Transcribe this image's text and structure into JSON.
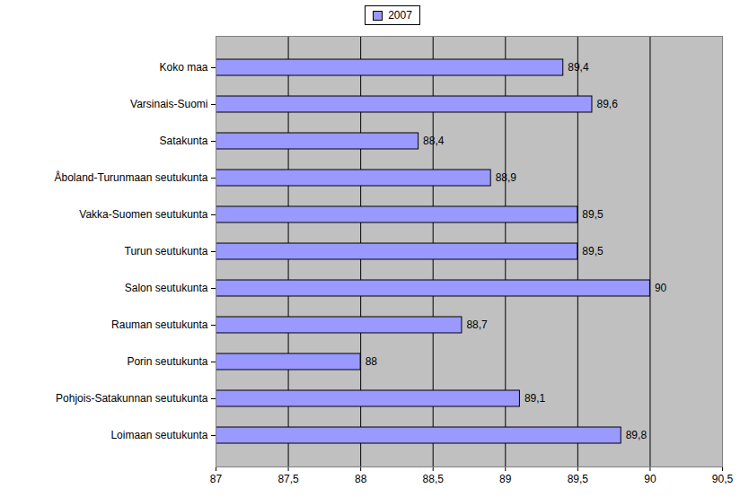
{
  "chart_data": {
    "type": "bar",
    "orientation": "horizontal",
    "categories": [
      "Koko maa",
      "Varsinais-Suomi",
      "Satakunta",
      "Åboland-Turunmaan seutukunta",
      "Vakka-Suomen seutukunta",
      "Turun seutukunta",
      "Salon seutukunta",
      "Rauman seutukunta",
      "Porin seutukunta",
      "Pohjois-Satakunnan seutukunta",
      "Loimaan seutukunta"
    ],
    "series": [
      {
        "name": "2007",
        "color": "#9999ff",
        "values": [
          89.4,
          89.6,
          88.4,
          88.9,
          89.5,
          89.5,
          90,
          88.7,
          88,
          89.1,
          89.8
        ],
        "value_labels": [
          "89,4",
          "89,6",
          "88,4",
          "88,9",
          "89,5",
          "89,5",
          "90",
          "88,7",
          "88",
          "89,1",
          "89,8"
        ]
      }
    ],
    "xlim": [
      87,
      90.5
    ],
    "xticks": [
      87,
      {
        "value": 87.5,
        "label": "87,5"
      },
      88,
      {
        "value": 88.5,
        "label": "88,5"
      },
      89,
      {
        "value": 89.5,
        "label": "89,5"
      },
      90,
      {
        "value": 90.5,
        "label": "90,5"
      }
    ],
    "grid": true,
    "data_labels": true,
    "legend": "top"
  }
}
